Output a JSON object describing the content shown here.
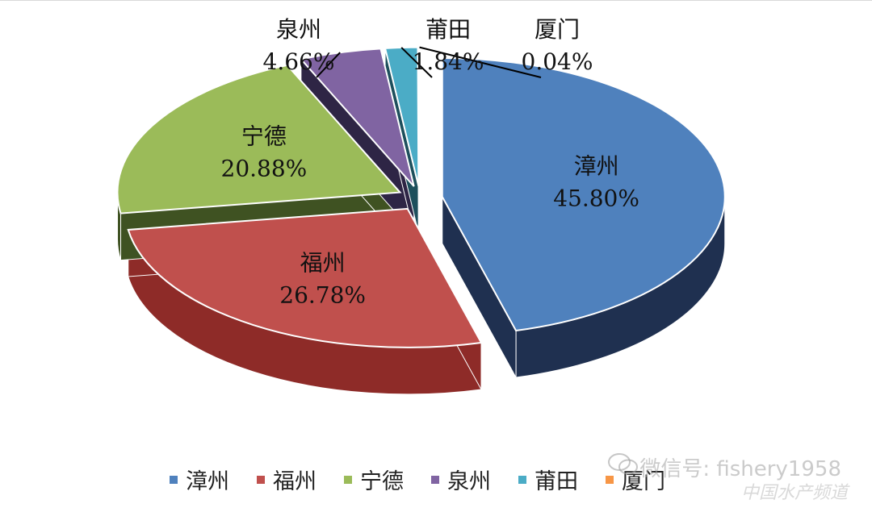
{
  "chart_data": {
    "type": "pie",
    "title": "",
    "slices": [
      {
        "name": "漳州",
        "value": 45.8,
        "label": "45.80%",
        "color": "#4f81bd",
        "side": "#1f3050"
      },
      {
        "name": "福州",
        "value": 26.78,
        "label": "26.78%",
        "color": "#c0504d",
        "side": "#8e2b28"
      },
      {
        "name": "宁德",
        "value": 20.88,
        "label": "20.88%",
        "color": "#9bbb59",
        "side": "#3f5222"
      },
      {
        "name": "泉州",
        "value": 4.66,
        "label": "4.66%",
        "color": "#8064a2",
        "side": "#2e2545"
      },
      {
        "name": "莆田",
        "value": 1.84,
        "label": "1.84%",
        "color": "#4bacc6",
        "side": "#1d4f5c"
      },
      {
        "name": "厦门",
        "value": 0.04,
        "label": "0.04%",
        "color": "#f79646",
        "side": "#9a5a25"
      }
    ],
    "legend_position": "bottom",
    "exploded": true,
    "three_d": true
  },
  "watermark": {
    "text": "微信号: fishery1958",
    "sub": "中国水产频道"
  }
}
